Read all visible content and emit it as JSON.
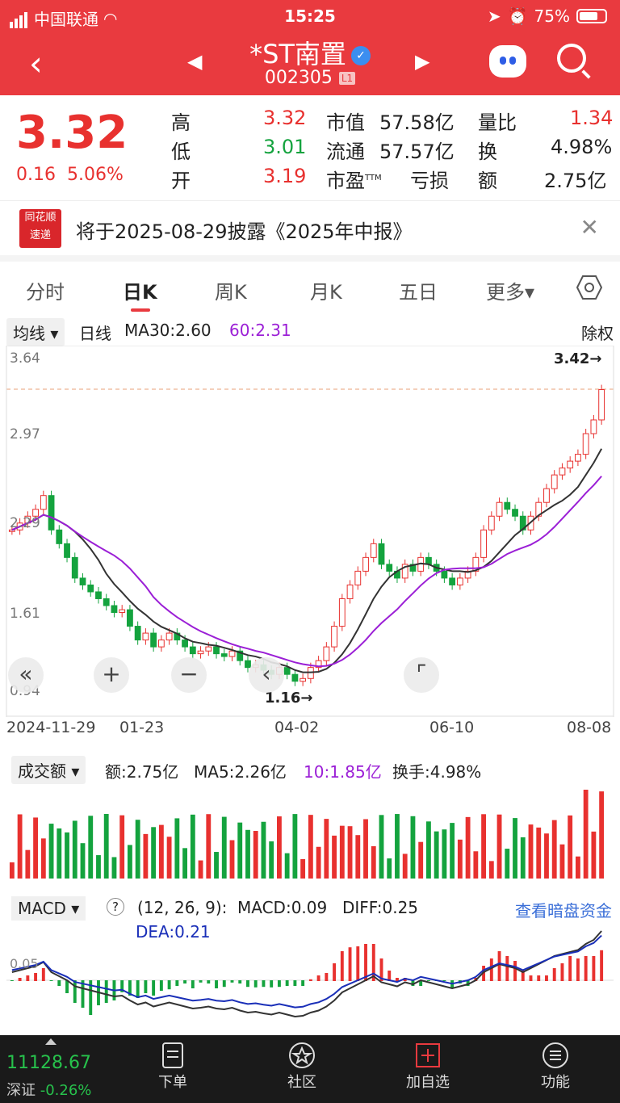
{
  "status": {
    "carrier": "中国联通",
    "time": "15:25",
    "battery": "75%"
  },
  "header": {
    "title": "*ST南置",
    "code": "002305",
    "level": "L1"
  },
  "quote": {
    "price": "3.32",
    "change": "0.16",
    "change_pct": "5.06%",
    "high_label": "高",
    "high": "3.32",
    "low_label": "低",
    "low": "3.01",
    "open_label": "开",
    "open": "3.19",
    "mktcap_label": "市值",
    "mktcap": "57.58亿",
    "float_label": "流通",
    "float": "57.57亿",
    "pe_label": "市盈",
    "pe_sup": "TTM",
    "pe": "亏损",
    "vr_label": "量比",
    "vr": "1.34",
    "turn_label": "换",
    "turn": "4.98%",
    "amt_label": "额",
    "amt": "2.75亿"
  },
  "notice": {
    "logo_line1": "同花顺",
    "logo_line2": "速递",
    "text": "将于2025-08-29披露《2025年中报》"
  },
  "tabs": [
    {
      "label": "分时"
    },
    {
      "label": "日K"
    },
    {
      "label": "周K"
    },
    {
      "label": "月K"
    },
    {
      "label": "五日"
    },
    {
      "label": "更多▾"
    }
  ],
  "ma": {
    "chip": "均线 ▾",
    "period": "日线",
    "ma30": "MA30:2.60",
    "ma60": "60:2.31",
    "adj": "除权"
  },
  "chart_data": {
    "type": "candlestick",
    "price_axis": {
      "ticks": [
        "3.64",
        "2.97",
        "2.29",
        "1.61",
        "0.94"
      ],
      "values": [
        3.64,
        2.97,
        2.29,
        1.61,
        0.94
      ]
    },
    "high_label": "3.42→",
    "low_label": "1.16→",
    "dates": [
      "2024-11-29",
      "01-23",
      "04-02",
      "06-10",
      "08-08"
    ],
    "close": [
      2.3,
      2.35,
      2.4,
      2.45,
      2.55,
      2.3,
      2.2,
      2.1,
      1.95,
      1.9,
      1.85,
      1.8,
      1.75,
      1.7,
      1.72,
      1.6,
      1.5,
      1.55,
      1.45,
      1.5,
      1.55,
      1.5,
      1.45,
      1.4,
      1.42,
      1.45,
      1.4,
      1.38,
      1.42,
      1.35,
      1.3,
      1.32,
      1.28,
      1.25,
      1.3,
      1.25,
      1.2,
      1.22,
      1.3,
      1.35,
      1.45,
      1.6,
      1.8,
      1.9,
      2.0,
      2.1,
      2.2,
      2.05,
      2.0,
      1.95,
      2.05,
      2.0,
      2.1,
      2.05,
      2.0,
      1.95,
      1.9,
      1.95,
      2.0,
      2.1,
      2.3,
      2.4,
      2.5,
      2.45,
      2.4,
      2.3,
      2.4,
      2.5,
      2.6,
      2.7,
      2.75,
      2.8,
      2.85,
      3.0,
      3.1,
      3.32
    ],
    "ma30_label": "MA30",
    "ma60_label": "60"
  },
  "volume": {
    "chip": "成交额 ▾",
    "amt": "额:2.75亿",
    "ma5": "MA5:2.26亿",
    "ma10": "10:1.85亿",
    "turn": "换手:4.98%"
  },
  "macd": {
    "chip": "MACD ▾",
    "help": "?",
    "params": "(12, 26, 9):",
    "macd": "MACD:0.09",
    "diff": "DIFF:0.25",
    "dea": "DEA:0.21",
    "link": "查看暗盘资金",
    "axis": "0.05"
  },
  "bottom": {
    "index_value": "11128.67",
    "index_name": "深证",
    "index_change": "-0.26%",
    "items": [
      {
        "label": "下单"
      },
      {
        "label": "社区"
      },
      {
        "label": "加自选"
      },
      {
        "label": "功能"
      }
    ]
  }
}
